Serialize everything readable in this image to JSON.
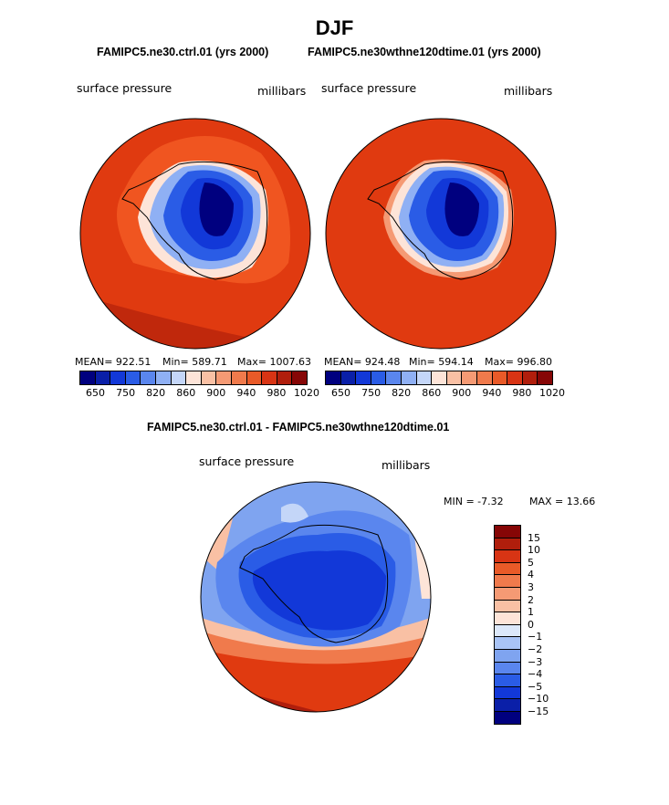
{
  "figure": {
    "title": "DJF",
    "panel_left_title": "FAMIPC5.ne30.ctrl.01 (yrs 2000)",
    "panel_right_title": "FAMIPC5.ne30wthne120dtime.01 (yrs 2000)",
    "diff_title": "FAMIPC5.ne30.ctrl.01 - FAMIPC5.ne30wthne120dtime.01"
  },
  "chart_data": [
    {
      "type": "heatmap",
      "name": "ctrl",
      "variable_label": "surface pressure",
      "units_label": "millibars",
      "stats": {
        "mean": "MEAN= 922.51",
        "min": "Min= 589.71",
        "max": "Max= 1007.63"
      },
      "colorbar_levels": [
        "650",
        "750",
        "820",
        "860",
        "900",
        "940",
        "980",
        "1020"
      ],
      "colorbar_colors": [
        "#00007f",
        "#0a1fa8",
        "#1238d8",
        "#2a5ce6",
        "#5a86ee",
        "#8fb0f4",
        "#c4d6f8",
        "#fde4d8",
        "#f9c0a4",
        "#f59a74",
        "#f07a4c",
        "#e95a28",
        "#d83414",
        "#b01e0c",
        "#860606"
      ]
    },
    {
      "type": "heatmap",
      "name": "wthne120dtime",
      "variable_label": "surface pressure",
      "units_label": "millibars",
      "stats": {
        "mean": "MEAN= 924.48",
        "min": "Min= 594.14",
        "max": "Max= 996.80"
      },
      "colorbar_levels": [
        "650",
        "750",
        "820",
        "860",
        "900",
        "940",
        "980",
        "1020"
      ],
      "colorbar_colors": [
        "#00007f",
        "#0a1fa8",
        "#1238d8",
        "#2a5ce6",
        "#5a86ee",
        "#8fb0f4",
        "#c4d6f8",
        "#fde4d8",
        "#f9c0a4",
        "#f59a74",
        "#f07a4c",
        "#e95a28",
        "#d83414",
        "#b01e0c",
        "#860606"
      ]
    },
    {
      "type": "heatmap",
      "name": "difference",
      "variable_label": "surface pressure",
      "units_label": "millibars",
      "stats": {
        "min": "MIN = -7.32",
        "max": "MAX = 13.66"
      },
      "colorbar_levels": [
        "15",
        "10",
        "5",
        "4",
        "3",
        "2",
        "1",
        "0",
        "−1",
        "−2",
        "−3",
        "−4",
        "−5",
        "−10",
        "−15"
      ],
      "colorbar_colors": [
        "#860606",
        "#b01e0c",
        "#d83414",
        "#e95a28",
        "#f07a4c",
        "#f59a74",
        "#f9c0a4",
        "#fde4d8",
        "#dce8fa",
        "#a9c4f6",
        "#7fa4f0",
        "#5a86ee",
        "#2a5ce6",
        "#1238d8",
        "#0a1fa8",
        "#00007f"
      ]
    }
  ]
}
